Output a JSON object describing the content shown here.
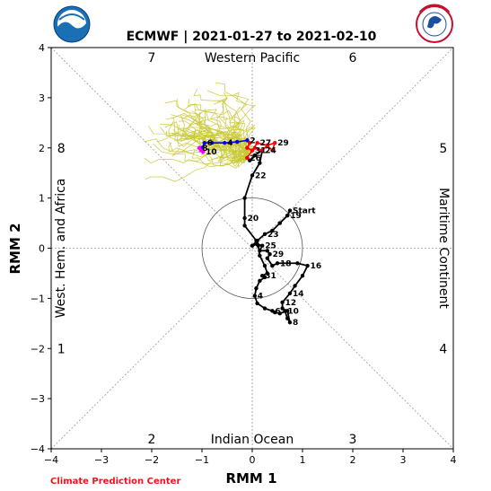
{
  "header": {
    "title": "ECMWF | 2021-01-27 to 2021-02-10",
    "logo_left": "NOAA",
    "logo_right": "NATIONAL WEATHER SERVICE"
  },
  "footer": {
    "credit": "Climate Prediction Center"
  },
  "chart_data": {
    "type": "line",
    "title": "ECMWF | 2021-01-27 to 2021-02-10",
    "xlabel": "RMM 1",
    "ylabel": "RMM 2",
    "xlim": [
      -4,
      4
    ],
    "ylim": [
      -4,
      4
    ],
    "xticks": [
      "−4",
      "−3",
      "−2",
      "−1",
      "0",
      "1",
      "2",
      "3",
      "4"
    ],
    "yticks": [
      "−4",
      "−3",
      "−2",
      "−1",
      "0",
      "1",
      "2",
      "3",
      "4"
    ],
    "phase_numbers": [
      {
        "label": "7",
        "x": -2.0,
        "y": 3.8
      },
      {
        "label": "6",
        "x": 2.0,
        "y": 3.8
      },
      {
        "label": "8",
        "x": -3.8,
        "y": 2.0
      },
      {
        "label": "5",
        "x": 3.8,
        "y": 2.0
      },
      {
        "label": "1",
        "x": -3.8,
        "y": -2.0
      },
      {
        "label": "4",
        "x": 3.8,
        "y": -2.0
      },
      {
        "label": "2",
        "x": -2.0,
        "y": -3.8
      },
      {
        "label": "3",
        "x": 2.0,
        "y": -3.8
      }
    ],
    "region_labels": {
      "top": "Western Pacific",
      "bottom": "Indian Ocean",
      "left": "West. Hem. and Africa",
      "right": "Maritime Continent"
    },
    "observed_series": {
      "color": "#000000",
      "points": [
        {
          "label": "Start",
          "x": 0.75,
          "y": 0.75
        },
        {
          "label": "19",
          "x": 0.7,
          "y": 0.65
        },
        {
          "label": "",
          "x": 0.55,
          "y": 0.5
        },
        {
          "label": "",
          "x": 0.4,
          "y": 0.35
        },
        {
          "label": "23",
          "x": 0.25,
          "y": 0.28
        },
        {
          "label": "",
          "x": 0.1,
          "y": 0.15
        },
        {
          "label": "",
          "x": 0.0,
          "y": 0.05
        },
        {
          "label": "",
          "x": 0.1,
          "y": 0.08
        },
        {
          "label": "25",
          "x": 0.2,
          "y": 0.05
        },
        {
          "label": "",
          "x": 0.15,
          "y": -0.05
        },
        {
          "label": "",
          "x": 0.3,
          "y": -0.05
        },
        {
          "label": "29",
          "x": 0.35,
          "y": -0.12
        },
        {
          "label": "",
          "x": 0.3,
          "y": -0.2
        },
        {
          "label": "",
          "x": 0.4,
          "y": -0.35
        },
        {
          "label": "18",
          "x": 0.5,
          "y": -0.3
        },
        {
          "label": "",
          "x": 0.9,
          "y": -0.3
        },
        {
          "label": "16",
          "x": 1.1,
          "y": -0.35
        },
        {
          "label": "",
          "x": 1.0,
          "y": -0.55
        },
        {
          "label": "",
          "x": 0.85,
          "y": -0.75
        },
        {
          "label": "14",
          "x": 0.75,
          "y": -0.9
        },
        {
          "label": "12",
          "x": 0.6,
          "y": -1.08
        },
        {
          "label": "",
          "x": 0.6,
          "y": -1.2
        },
        {
          "label": "10",
          "x": 0.65,
          "y": -1.25
        },
        {
          "label": "",
          "x": 0.7,
          "y": -1.4
        },
        {
          "label": "8",
          "x": 0.75,
          "y": -1.48
        },
        {
          "label": "",
          "x": 0.7,
          "y": -1.25
        },
        {
          "label": "",
          "x": 0.55,
          "y": -1.3
        },
        {
          "label": "",
          "x": 0.45,
          "y": -1.28
        },
        {
          "label": "6",
          "x": 0.4,
          "y": -1.25
        },
        {
          "label": "",
          "x": 0.25,
          "y": -1.2
        },
        {
          "label": "",
          "x": 0.1,
          "y": -1.1
        },
        {
          "label": "4",
          "x": 0.05,
          "y": -0.95
        },
        {
          "label": "",
          "x": 0.08,
          "y": -0.8
        },
        {
          "label": "",
          "x": 0.15,
          "y": -0.65
        },
        {
          "label": "",
          "x": 0.25,
          "y": -0.58
        },
        {
          "label": "31",
          "x": 0.2,
          "y": -0.55
        },
        {
          "label": "",
          "x": 0.3,
          "y": -0.5
        },
        {
          "label": "",
          "x": 0.25,
          "y": -0.35
        },
        {
          "label": "",
          "x": 0.15,
          "y": -0.15
        },
        {
          "label": "",
          "x": 0.12,
          "y": 0.05
        },
        {
          "label": "",
          "x": 0.08,
          "y": 0.15
        },
        {
          "label": "",
          "x": -0.15,
          "y": 0.45
        },
        {
          "label": "20",
          "x": -0.15,
          "y": 0.6
        },
        {
          "label": "",
          "x": -0.15,
          "y": 1.0
        },
        {
          "label": "22",
          "x": 0.0,
          "y": 1.45
        },
        {
          "label": "",
          "x": 0.15,
          "y": 1.7
        },
        {
          "label": "24",
          "x": 0.2,
          "y": 1.95
        },
        {
          "label": "",
          "x": 0.05,
          "y": 1.85
        },
        {
          "label": "",
          "x": -0.05,
          "y": 1.75
        },
        {
          "label": "26",
          "x": -0.1,
          "y": 1.8
        }
      ]
    },
    "forecast_ensemble_mean": {
      "color": "#ff0000",
      "points": [
        {
          "label": "",
          "x": -0.1,
          "y": 1.8
        },
        {
          "label": "",
          "x": 0.0,
          "y": 1.95
        },
        {
          "label": "27",
          "x": 0.1,
          "y": 2.1
        },
        {
          "label": "",
          "x": 0.3,
          "y": 2.05
        },
        {
          "label": "",
          "x": 0.4,
          "y": 1.95
        },
        {
          "label": "29",
          "x": 0.45,
          "y": 2.1
        },
        {
          "label": "",
          "x": 0.3,
          "y": 2.05
        },
        {
          "label": "",
          "x": 0.2,
          "y": 1.95
        },
        {
          "label": "",
          "x": 0.05,
          "y": 2.0
        },
        {
          "label": "31",
          "x": 0.0,
          "y": 1.95
        },
        {
          "label": "",
          "x": -0.1,
          "y": 2.0
        },
        {
          "label": "",
          "x": -0.05,
          "y": 2.1
        },
        {
          "label": "2",
          "x": -0.1,
          "y": 2.15
        }
      ]
    },
    "forecast_week2": {
      "color": "#0000ff",
      "points": [
        {
          "label": "",
          "x": -0.1,
          "y": 2.15
        },
        {
          "label": "",
          "x": -0.3,
          "y": 2.12
        },
        {
          "label": "4",
          "x": -0.55,
          "y": 2.1
        },
        {
          "label": "",
          "x": -0.8,
          "y": 2.1
        },
        {
          "label": "6",
          "x": -0.95,
          "y": 2.1
        },
        {
          "label": "",
          "x": -1.0,
          "y": 2.0
        },
        {
          "label": "8",
          "x": -1.05,
          "y": 2.0
        }
      ]
    },
    "forecast_final": {
      "color": "#ff00ff",
      "points": [
        {
          "label": "",
          "x": -1.05,
          "y": 2.0
        },
        {
          "label": "",
          "x": -1.02,
          "y": 1.95
        },
        {
          "label": "10",
          "x": -0.98,
          "y": 1.92
        }
      ]
    },
    "ensemble_members": {
      "color": "#c8c832",
      "count": 50,
      "start": [
        -0.1,
        1.8
      ],
      "note_source": "ensemble spaghetti"
    },
    "grid": false,
    "unit_circle": true,
    "diagonals": true
  }
}
